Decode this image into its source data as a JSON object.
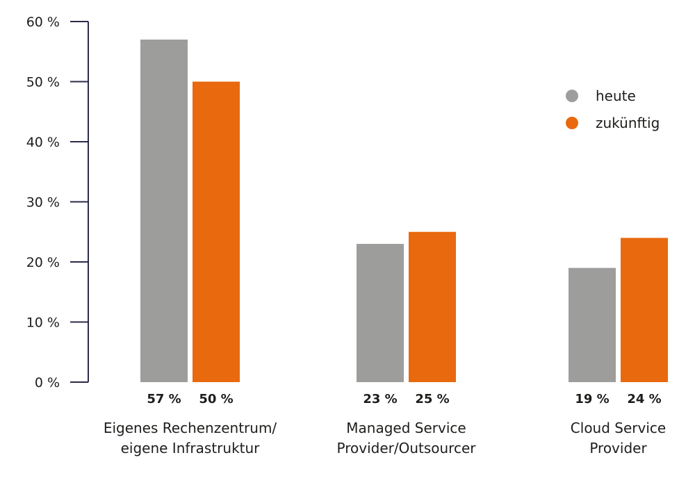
{
  "chart_data": {
    "type": "bar",
    "categories": [
      [
        "Eigenes Rechenzentrum/",
        "eigene Infrastruktur"
      ],
      [
        "Managed Service",
        "Provider/Outsourcer"
      ],
      [
        "Cloud Service",
        "Provider"
      ]
    ],
    "series": [
      {
        "name": "heute",
        "color": "#9d9d9c",
        "values": [
          57,
          23,
          19
        ],
        "labels": [
          "57 %",
          "23 %",
          "19 %"
        ]
      },
      {
        "name": "zukünftig",
        "color": "#e8690e",
        "values": [
          50,
          25,
          24
        ],
        "labels": [
          "50 %",
          "25 %",
          "24 %"
        ]
      }
    ],
    "y_ticks": [
      {
        "value": 0,
        "label": "0 %"
      },
      {
        "value": 10,
        "label": "10 %"
      },
      {
        "value": 20,
        "label": "20 %"
      },
      {
        "value": 30,
        "label": "30 %"
      },
      {
        "value": 40,
        "label": "40 %"
      },
      {
        "value": 50,
        "label": "50 %"
      },
      {
        "value": 60,
        "label": "60 %"
      }
    ],
    "ylim": [
      0,
      60
    ],
    "grid": false,
    "legend_position": "top-right"
  }
}
